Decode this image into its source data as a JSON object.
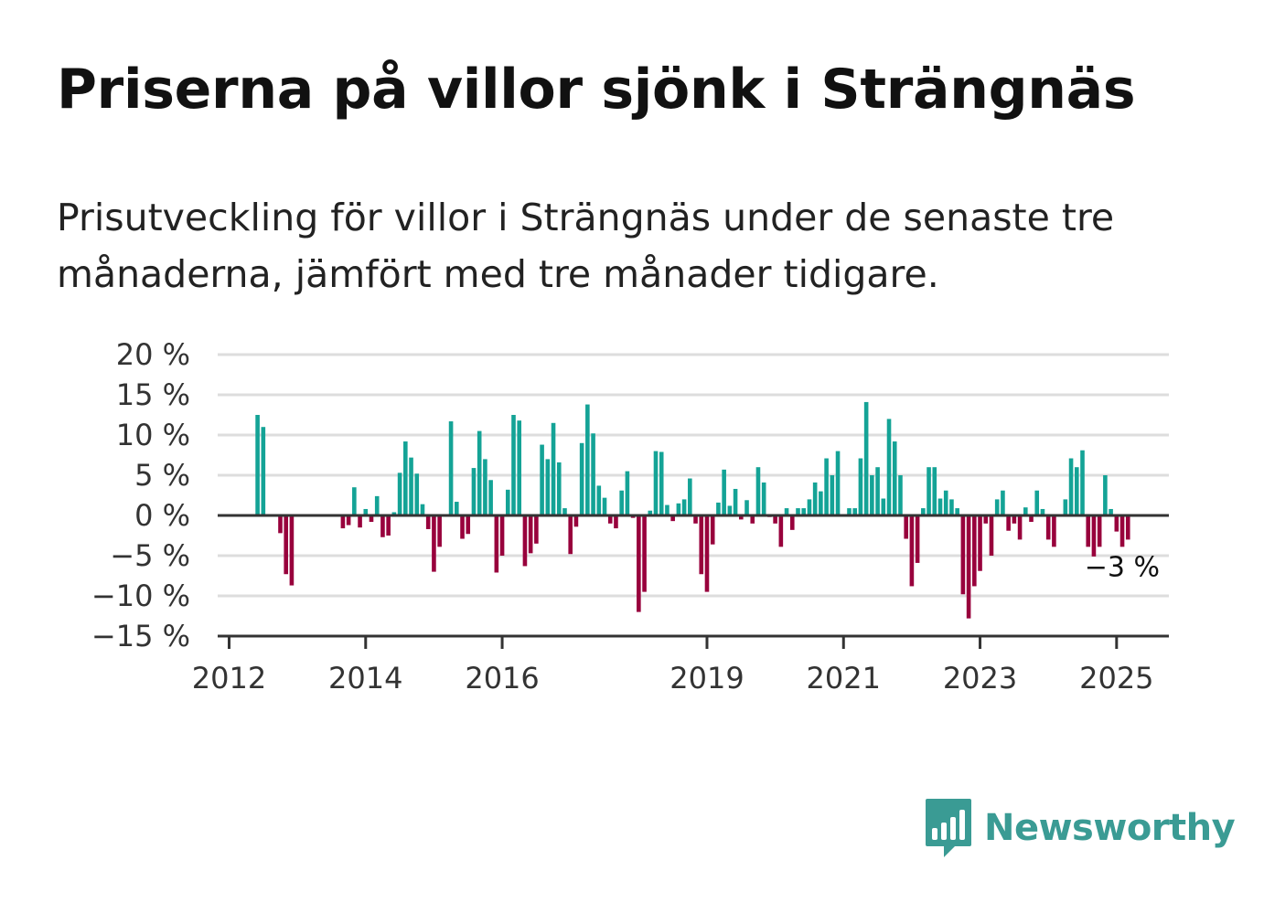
{
  "title": "Priserna på villor sjönk i Strängnäs",
  "subtitle": "Prisutveckling för villor i Strängnäs under de senaste tre månaderna, jämfört med tre månader tidigare.",
  "brand": "Newsworthy",
  "colors": {
    "positive": "#14a396",
    "negative": "#98003c",
    "grid": "#dddddd",
    "axis": "#333333",
    "brand": "#3a9b94"
  },
  "chart_data": {
    "type": "bar",
    "x_start": "2012-01",
    "y_unit": "%",
    "ylim": [
      -15,
      20
    ],
    "y_ticks": [
      {
        "value": 20,
        "label": "20 %"
      },
      {
        "value": 15,
        "label": "15 %"
      },
      {
        "value": 10,
        "label": "10 %"
      },
      {
        "value": 5,
        "label": "5 %"
      },
      {
        "value": 0,
        "label": "0 %"
      },
      {
        "value": -5,
        "label": "−5 %"
      },
      {
        "value": -10,
        "label": "−10 %"
      },
      {
        "value": -15,
        "label": "−15 %"
      }
    ],
    "x_ticks": [
      {
        "date": "2012-01",
        "label": "2012"
      },
      {
        "date": "2014-01",
        "label": "2014"
      },
      {
        "date": "2016-01",
        "label": "2016"
      },
      {
        "date": "2019-01",
        "label": "2019"
      },
      {
        "date": "2021-01",
        "label": "2021"
      },
      {
        "date": "2023-01",
        "label": "2023"
      },
      {
        "date": "2025-01",
        "label": "2025"
      }
    ],
    "grid": true,
    "annotation": {
      "text": "−3 %",
      "value": -3
    },
    "values": [
      null,
      null,
      null,
      null,
      null,
      12.5,
      11,
      null,
      null,
      -2.2,
      -7.3,
      -8.7,
      null,
      null,
      null,
      null,
      null,
      null,
      null,
      null,
      -1.6,
      -1.2,
      3.5,
      -1.5,
      0.8,
      -0.8,
      2.4,
      -2.7,
      -2.5,
      0.4,
      5.3,
      9.2,
      7.2,
      5.2,
      1.4,
      -1.7,
      -7,
      -3.9,
      null,
      11.7,
      1.7,
      -2.9,
      -2.3,
      5.9,
      10.5,
      7,
      4.4,
      -7.1,
      -5,
      3.2,
      12.5,
      11.8,
      -6.3,
      -4.7,
      -3.5,
      8.8,
      7,
      11.5,
      6.6,
      0.9,
      -4.8,
      -1.4,
      9,
      13.8,
      10.2,
      3.7,
      2.2,
      -1,
      -1.6,
      3.1,
      5.5,
      -0.3,
      -12,
      -9.5,
      0.6,
      8,
      7.9,
      1.3,
      -0.7,
      1.5,
      2,
      4.6,
      -1,
      -7.3,
      -9.5,
      -3.6,
      1.6,
      5.7,
      1.2,
      3.3,
      -0.5,
      1.9,
      -1,
      6,
      4.1,
      -0.2,
      -1,
      -3.9,
      0.9,
      -1.8,
      0.9,
      0.9,
      2,
      4.1,
      3,
      7.1,
      5,
      8,
      null,
      0.9,
      0.9,
      7.1,
      14.1,
      5,
      6,
      2.1,
      12,
      9.2,
      5,
      -2.9,
      -8.8,
      -5.9,
      0.9,
      6,
      6,
      2.1,
      3.1,
      2,
      0.9,
      -9.8,
      -12.8,
      -8.8,
      -6.9,
      -1,
      -5,
      2,
      3.1,
      -1.9,
      -1,
      -3,
      1,
      -0.8,
      3.1,
      0.8,
      -3,
      -3.9,
      null,
      2,
      7.1,
      6,
      8.1,
      -3.9,
      -5.1,
      -3.9,
      5,
      0.8,
      -2,
      -3.9,
      -3
    ]
  }
}
